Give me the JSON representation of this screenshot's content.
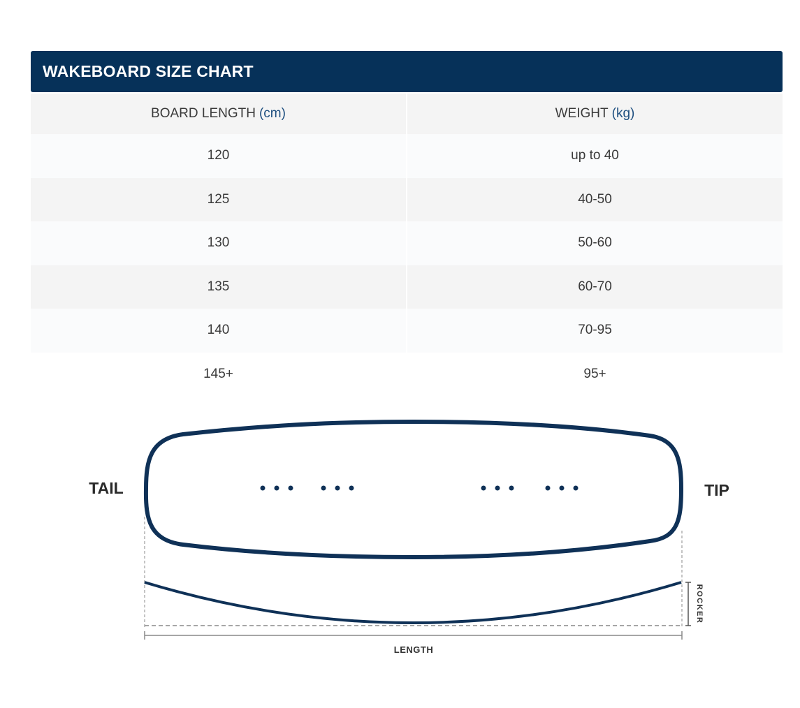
{
  "chart": {
    "title": "WAKEBOARD SIZE CHART",
    "columns": [
      {
        "label": "BOARD LENGTH",
        "unit": "(cm)"
      },
      {
        "label": "WEIGHT",
        "unit": "(kg)"
      }
    ],
    "rows": [
      {
        "length": "120",
        "weight": "up to 40"
      },
      {
        "length": "125",
        "weight": "40-50"
      },
      {
        "length": "130",
        "weight": "50-60"
      },
      {
        "length": "135",
        "weight": "60-70"
      },
      {
        "length": "140",
        "weight": "70-95"
      },
      {
        "length": "145+",
        "weight": "95+"
      }
    ]
  },
  "diagram": {
    "tail_label": "TAIL",
    "tip_label": "TIP",
    "rocker_label": "ROCKER",
    "length_label": "LENGTH",
    "line_color": "#0f3157",
    "guide_color": "#888888"
  }
}
